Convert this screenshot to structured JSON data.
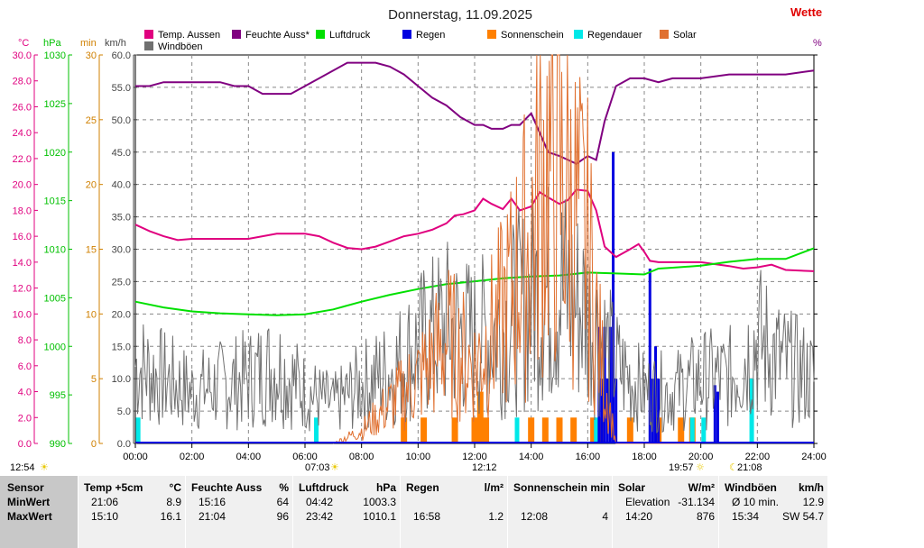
{
  "title": "Donnerstag, 11.09.2025",
  "brand": "Wette",
  "axes_units": {
    "temp": "°C",
    "press": "hPa",
    "dur": "min",
    "speed": "km/h",
    "percent": "%"
  },
  "legend": [
    {
      "label": "Temp. Aussen",
      "color": "#e0007f"
    },
    {
      "label": "Feuchte Auss*",
      "color": "#800080"
    },
    {
      "label": "Luftdruck",
      "color": "#00e000"
    },
    {
      "label": "Regen",
      "color": "#0000e0"
    },
    {
      "label": "Sonnenschein",
      "color": "#ff8000"
    },
    {
      "label": "Regendauer",
      "color": "#00e8e8"
    },
    {
      "label": "Solar",
      "color": "#e07030"
    },
    {
      "label": "Windböen",
      "color": "#707070"
    }
  ],
  "time_markers": {
    "now": "12:54",
    "sunrise": "07:03",
    "noon": "12:12",
    "sunset": "19:57",
    "moon": "21:08"
  },
  "chart_data": {
    "type": "line",
    "x_ticks": [
      "00:00",
      "02:00",
      "04:00",
      "06:00",
      "08:00",
      "10:00",
      "12:00",
      "14:00",
      "16:00",
      "18:00",
      "20:00",
      "22:00",
      "24:00"
    ],
    "xlim": [
      0,
      24
    ],
    "temp_ticks": [
      "30.0",
      "28.0",
      "26.0",
      "24.0",
      "22.0",
      "20.0",
      "18.0",
      "16.0",
      "14.0",
      "12.0",
      "10.0",
      "8.0",
      "6.0",
      "4.0",
      "2.0",
      "0.0"
    ],
    "press_ticks": [
      "1030",
      "1025",
      "1020",
      "1015",
      "1010",
      "1005",
      "1000",
      "995",
      "990"
    ],
    "dur_ticks": [
      "30",
      "25",
      "20",
      "15",
      "10",
      "5",
      "0"
    ],
    "speed_ticks": [
      "60.0",
      "55.0",
      "50.0",
      "45.0",
      "40.0",
      "35.0",
      "30.0",
      "25.0",
      "20.0",
      "15.0",
      "10.0",
      "5.0",
      "0.0"
    ],
    "ylim_temp": [
      0,
      30
    ],
    "ylim_press": [
      990,
      1030
    ],
    "ylim_dur": [
      0,
      30
    ],
    "ylim_speed": [
      0,
      60
    ],
    "series": [
      {
        "name": "Temp. Aussen",
        "axis": "temp",
        "color": "#e0007f",
        "x": [
          0,
          0.5,
          1,
          1.5,
          2,
          3,
          4,
          5,
          6,
          6.5,
          7,
          7.5,
          8,
          8.5,
          9,
          9.5,
          10,
          10.5,
          11,
          11.3,
          11.6,
          12,
          12.3,
          12.6,
          13,
          13.3,
          13.6,
          14,
          14.3,
          14.6,
          15,
          15.3,
          15.6,
          16,
          16.3,
          16.6,
          17,
          17.5,
          17.8,
          18,
          18.2,
          18.5,
          19,
          20,
          21,
          21.5,
          22,
          22.5,
          23,
          24
        ],
        "y": [
          16.9,
          16.4,
          16.0,
          15.7,
          15.8,
          15.8,
          15.8,
          16.2,
          16.2,
          16.0,
          15.5,
          15.1,
          15.0,
          15.2,
          15.6,
          16.0,
          16.2,
          16.5,
          17.0,
          17.6,
          17.7,
          18.0,
          18.9,
          18.5,
          18.1,
          18.9,
          18.0,
          18.3,
          19.4,
          19.0,
          18.5,
          18.8,
          19.6,
          19.5,
          18.0,
          15.2,
          14.4,
          15.0,
          15.4,
          14.8,
          14.1,
          14.0,
          14.0,
          14.0,
          13.7,
          13.5,
          13.6,
          13.8,
          13.4,
          13.3
        ]
      },
      {
        "name": "Feuchte Auss*",
        "axis": "percent",
        "color": "#800080",
        "x": [
          0,
          0.5,
          1,
          1.5,
          2,
          3,
          3.5,
          4,
          4.5,
          5,
          5.5,
          6,
          6.5,
          7,
          7.5,
          8,
          8.5,
          9,
          9.5,
          10,
          10.5,
          11,
          11.5,
          12,
          12.3,
          12.6,
          13,
          13.3,
          13.6,
          14,
          14.3,
          14.6,
          15,
          15.3,
          15.6,
          16,
          16.3,
          16.6,
          17,
          17.5,
          18,
          18.5,
          19,
          20,
          21,
          22,
          23,
          24
        ],
        "y": [
          92,
          92,
          93,
          93,
          93,
          93,
          92,
          92,
          90,
          90,
          90,
          92,
          94,
          96,
          98,
          98,
          98,
          97,
          95,
          92,
          89,
          87,
          84,
          82,
          82,
          81,
          81,
          82,
          82,
          85,
          80,
          75,
          74,
          73,
          72,
          74,
          73,
          83,
          92,
          94,
          94,
          93,
          94,
          94,
          95,
          95,
          95,
          96
        ]
      },
      {
        "name": "Luftdruck",
        "axis": "press",
        "color": "#00e000",
        "x": [
          0,
          1,
          2,
          3,
          4,
          5,
          6,
          7,
          8,
          9,
          10,
          11,
          12,
          13,
          14,
          15,
          16,
          17,
          18,
          18.5,
          19,
          20,
          21,
          22,
          23,
          24
        ],
        "y": [
          1004.6,
          1004.0,
          1003.6,
          1003.4,
          1003.3,
          1003.2,
          1003.3,
          1003.8,
          1004.6,
          1005.3,
          1005.9,
          1006.4,
          1006.7,
          1007.0,
          1007.2,
          1007.3,
          1007.6,
          1007.5,
          1007.4,
          1008.0,
          1008.1,
          1008.3,
          1008.7,
          1009.0,
          1009.0,
          1010.1
        ]
      },
      {
        "name": "Windböen",
        "axis": "speed",
        "color": "#707070",
        "kind": "noise",
        "x": [
          0,
          1,
          2,
          3,
          4,
          5,
          6,
          7,
          8,
          9,
          10,
          11,
          12,
          13,
          14,
          15,
          16,
          17,
          18,
          19,
          20,
          21,
          22,
          23,
          24
        ],
        "y": [
          12,
          10,
          8,
          9,
          10,
          12,
          8,
          6,
          9,
          11,
          15,
          18,
          16,
          18,
          22,
          24,
          20,
          12,
          8,
          8,
          10,
          10,
          16,
          12,
          10
        ]
      },
      {
        "name": "Solar",
        "axis": "dur",
        "color": "#e07030",
        "kind": "noise",
        "x": [
          7,
          8,
          9,
          10,
          11,
          12,
          13,
          14,
          14.5,
          15,
          15.5,
          16,
          16.5,
          17,
          20
        ],
        "y": [
          0,
          1,
          3,
          5,
          8,
          6,
          10,
          16,
          22,
          20,
          18,
          15,
          6,
          0,
          0
        ]
      }
    ],
    "rain_bars": {
      "axis": "speed",
      "color": "#0000e0",
      "x": [
        16.4,
        16.5,
        16.6,
        16.7,
        16.8,
        16.9,
        17.0,
        18.2,
        18.3,
        18.4,
        18.5,
        20.5,
        20.6
      ],
      "y": [
        18,
        10,
        18,
        10,
        18,
        45,
        10,
        27,
        10,
        15,
        10,
        9,
        8
      ]
    },
    "sunshine_bars": {
      "axis": "dur",
      "color": "#ff8000",
      "x": [
        9.5,
        10.2,
        11.3,
        12.0,
        12.2,
        12.4,
        14.0,
        14.5,
        15.0,
        15.5,
        16.2,
        16.5,
        17.5,
        18.5,
        19.3,
        19.7
      ],
      "y": [
        2,
        2,
        2,
        2,
        4,
        2,
        2,
        2,
        2,
        2,
        2,
        2,
        2,
        2,
        2,
        2
      ]
    },
    "raindur_bars": {
      "axis": "dur",
      "color": "#00e8e8",
      "x": [
        0.1,
        6.4,
        13.5,
        16.3,
        19.7,
        20.1,
        21.8
      ],
      "y": [
        2,
        2,
        2,
        2,
        2,
        2,
        5
      ]
    }
  },
  "table": {
    "row_labels": [
      "Sensor",
      "MinWert",
      "MaxWert"
    ],
    "columns": [
      {
        "header": "Temp +5cm",
        "unit": "°C",
        "rows": [
          [
            "21:06",
            "8.9"
          ],
          [
            "15:10",
            "16.1"
          ]
        ]
      },
      {
        "header": "Feuchte Auss",
        "unit": "%",
        "rows": [
          [
            "15:16",
            "64"
          ],
          [
            "21:04",
            "96"
          ]
        ]
      },
      {
        "header": "Luftdruck",
        "unit": "hPa",
        "rows": [
          [
            "04:42",
            "1003.3"
          ],
          [
            "23:42",
            "1010.1"
          ]
        ]
      },
      {
        "header": "Regen",
        "unit": "l/m²",
        "rows": [
          [
            "",
            ""
          ],
          [
            "16:58",
            "1.2"
          ]
        ]
      },
      {
        "header": "Sonnenschein min",
        "unit": "",
        "rows": [
          [
            "",
            ""
          ],
          [
            "12:08",
            "4"
          ]
        ]
      },
      {
        "header": "Solar",
        "unit": "W/m²",
        "rows": [
          [
            "Elevation",
            "-31.134"
          ],
          [
            "14:20",
            "876"
          ]
        ]
      },
      {
        "header": "Windböen",
        "unit": "km/h",
        "rows": [
          [
            "Ø 10 min.",
            "12.9"
          ],
          [
            "15:34",
            "SW 54.7"
          ]
        ]
      }
    ]
  }
}
